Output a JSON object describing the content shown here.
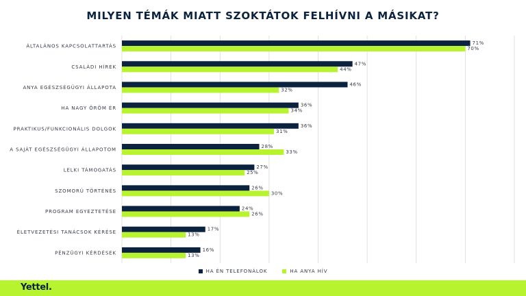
{
  "title": "MILYEN TÉMÁK MIATT SZOKTÁTOK FELHÍVNI A MÁSIKAT?",
  "brand": "Yettel.",
  "colors": {
    "series1": "#0c2340",
    "series2": "#b7f32f",
    "footer": "#b7f32f",
    "gridline": "#d9d9d9",
    "text": "#333a44"
  },
  "chart_data": {
    "type": "bar",
    "orientation": "horizontal",
    "categories": [
      "ÁLTALÁNOS KAPCSOLATTARTÁS",
      "CSALÁDI HÍREK",
      "ANYA EGÉSZSÉGÜGYI ÁLLAPOTA",
      "HA NAGY ÖRÖM ÉR",
      "PRAKTIKUS/FUNKCIONÁLIS DOLGOK",
      "A SAJÁT EGÉSZSÉGÜGYI ÁLLAPOTOM",
      "LELKI TÁMOGATÁS",
      "SZOMORÚ TÖRTÉNÉS",
      "PROGRAM EGYEZTETÉSE",
      "ÉLETVEZETÉSI TANÁCSOK KÉRÉSE",
      "PÉNZÜGYI KÉRDÉSEK"
    ],
    "series": [
      {
        "name": "HA ÉN TELEFONÁLOK",
        "values": [
          71,
          47,
          46,
          36,
          36,
          28,
          27,
          26,
          24,
          17,
          16
        ],
        "labels": [
          "71%",
          "47%",
          "46%",
          "36%",
          "36%",
          "28%",
          "27%",
          "26%",
          "24%",
          "17%",
          "16%"
        ]
      },
      {
        "name": "HA ANYA HÍV",
        "values": [
          70,
          44,
          32,
          34,
          31,
          33,
          25,
          30,
          26,
          13,
          13
        ],
        "labels": [
          "70%",
          "44%",
          "32%",
          "34%",
          "31%",
          "33%",
          "25%",
          "30%",
          "26%",
          "13%",
          "13%"
        ]
      }
    ],
    "xlim": [
      0,
      80
    ],
    "gridlines": true,
    "legend_position": "bottom"
  }
}
